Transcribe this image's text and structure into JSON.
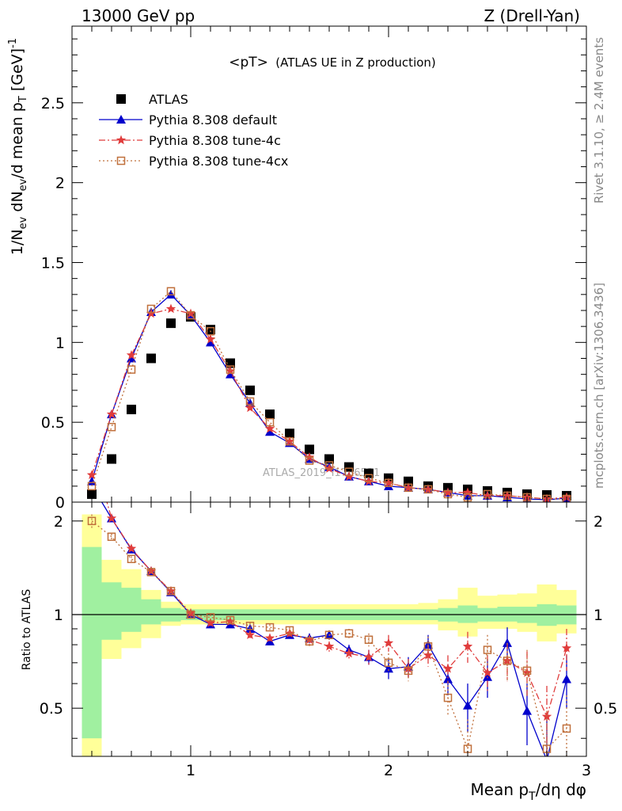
{
  "header": {
    "left": "13000 GeV pp",
    "right": "Z (Drell-Yan)"
  },
  "side_labels": {
    "rivet": "Rivet 3.1.10, ≥ 2.4M events",
    "mcplots": "mcplots.cern.ch [arXiv:1306.3436]"
  },
  "watermark": "ATLAS_2019_I1736531",
  "chart_data": [
    {
      "type": "scatter",
      "title": "<pT>",
      "subtitle": "(ATLAS UE in Z production)",
      "xlabel": "Mean p_T/dη dφ",
      "ylabel": "1/N_ev dN_ev/d mean p_T [GeV]^-1",
      "xlim": [
        0.4,
        3.0
      ],
      "ylim": [
        0,
        2.98
      ],
      "yticks": [
        0,
        0.5,
        1,
        1.5,
        2,
        2.5
      ],
      "ytick_labels": [
        "0",
        "0.5",
        "1",
        "1.5",
        "2",
        "2.5"
      ],
      "legend_position": "top-left",
      "x": [
        0.5,
        0.6,
        0.7,
        0.8,
        0.9,
        1.0,
        1.1,
        1.2,
        1.3,
        1.4,
        1.5,
        1.6,
        1.7,
        1.8,
        1.9,
        2.0,
        2.1,
        2.2,
        2.3,
        2.4,
        2.5,
        2.6,
        2.7,
        2.8,
        2.9
      ],
      "series": [
        {
          "name": "ATLAS",
          "marker": "square",
          "color": "#000000",
          "values": [
            0.05,
            0.27,
            0.58,
            0.9,
            1.12,
            1.16,
            1.08,
            0.87,
            0.7,
            0.55,
            0.43,
            0.33,
            0.27,
            0.22,
            0.18,
            0.15,
            0.13,
            0.1,
            0.09,
            0.08,
            0.07,
            0.06,
            0.05,
            0.045,
            0.04
          ]
        },
        {
          "name": "Pythia 8.308 default",
          "marker": "triangle",
          "color": "#0000cc",
          "line": "solid",
          "values": [
            0.13,
            0.55,
            0.9,
            1.19,
            1.3,
            1.17,
            1.0,
            0.8,
            0.62,
            0.44,
            0.37,
            0.27,
            0.22,
            0.16,
            0.13,
            0.1,
            0.09,
            0.08,
            0.06,
            0.04,
            0.04,
            0.03,
            0.02,
            0.015,
            0.025
          ]
        },
        {
          "name": "Pythia 8.308 tune-4c",
          "marker": "star",
          "color": "#e03c3c",
          "line": "dashdot",
          "values": [
            0.17,
            0.55,
            0.92,
            1.18,
            1.21,
            1.18,
            1.02,
            0.82,
            0.59,
            0.46,
            0.38,
            0.28,
            0.21,
            0.16,
            0.13,
            0.12,
            0.09,
            0.08,
            0.06,
            0.06,
            0.04,
            0.04,
            0.03,
            0.02,
            0.03
          ]
        },
        {
          "name": "Pythia 8.308 tune-4cx",
          "marker": "open-square",
          "color": "#c0703c",
          "line": "dotted",
          "values": [
            0.1,
            0.47,
            0.83,
            1.21,
            1.32,
            1.17,
            1.07,
            0.83,
            0.63,
            0.5,
            0.38,
            0.26,
            0.23,
            0.19,
            0.15,
            0.12,
            0.09,
            0.08,
            0.05,
            0.03,
            0.05,
            0.04,
            0.03,
            0.02,
            0.02
          ]
        }
      ]
    },
    {
      "type": "line",
      "ylabel": "Ratio to ATLAS",
      "xlabel": "Mean p_T/dη dφ",
      "xlim": [
        0.4,
        3.0
      ],
      "ylim": [
        0.35,
        2.3
      ],
      "yticks": [
        0.5,
        1,
        2
      ],
      "ytick_labels": [
        "0.5",
        "1",
        "2"
      ],
      "xticks": [
        1,
        2,
        3
      ],
      "xtick_labels": [
        "1",
        "2",
        "3"
      ],
      "bands": {
        "bin_edges": [
          0.45,
          0.55,
          0.65,
          0.75,
          0.85,
          0.95,
          1.05,
          1.15,
          1.25,
          1.35,
          1.45,
          1.55,
          1.65,
          1.75,
          1.85,
          1.95,
          2.05,
          2.15,
          2.25,
          2.35,
          2.45,
          2.55,
          2.65,
          2.75,
          2.85,
          2.95
        ],
        "stat_color": "#a0f0a0",
        "syst_color": "#ffff99",
        "stat": [
          [
            0.4,
            1.65
          ],
          [
            0.83,
            1.27
          ],
          [
            0.88,
            1.22
          ],
          [
            0.93,
            1.12
          ],
          [
            0.95,
            1.05
          ],
          [
            0.96,
            1.04
          ],
          [
            0.96,
            1.04
          ],
          [
            0.96,
            1.04
          ],
          [
            0.96,
            1.04
          ],
          [
            0.96,
            1.04
          ],
          [
            0.96,
            1.04
          ],
          [
            0.96,
            1.04
          ],
          [
            0.96,
            1.04
          ],
          [
            0.96,
            1.04
          ],
          [
            0.96,
            1.04
          ],
          [
            0.96,
            1.04
          ],
          [
            0.96,
            1.04
          ],
          [
            0.96,
            1.04
          ],
          [
            0.95,
            1.05
          ],
          [
            0.94,
            1.07
          ],
          [
            0.95,
            1.05
          ],
          [
            0.95,
            1.06
          ],
          [
            0.94,
            1.06
          ],
          [
            0.92,
            1.08
          ],
          [
            0.93,
            1.07
          ]
        ],
        "syst": [
          [
            0.3,
            2.1
          ],
          [
            0.72,
            1.5
          ],
          [
            0.78,
            1.4
          ],
          [
            0.84,
            1.2
          ],
          [
            0.92,
            1.1
          ],
          [
            0.93,
            1.08
          ],
          [
            0.93,
            1.08
          ],
          [
            0.93,
            1.08
          ],
          [
            0.93,
            1.08
          ],
          [
            0.93,
            1.08
          ],
          [
            0.93,
            1.08
          ],
          [
            0.93,
            1.08
          ],
          [
            0.93,
            1.08
          ],
          [
            0.93,
            1.08
          ],
          [
            0.93,
            1.08
          ],
          [
            0.93,
            1.08
          ],
          [
            0.93,
            1.08
          ],
          [
            0.93,
            1.09
          ],
          [
            0.89,
            1.12
          ],
          [
            0.85,
            1.22
          ],
          [
            0.9,
            1.15
          ],
          [
            0.9,
            1.16
          ],
          [
            0.88,
            1.17
          ],
          [
            0.82,
            1.25
          ],
          [
            0.87,
            1.2
          ]
        ]
      },
      "series": [
        {
          "name": "Pythia 8.308 default",
          "color": "#0000cc",
          "line": "solid",
          "marker": "triangle",
          "values": [
            2.6,
            2.04,
            1.62,
            1.38,
            1.18,
            1.0,
            0.93,
            0.93,
            0.9,
            0.82,
            0.86,
            0.84,
            0.86,
            0.77,
            0.73,
            0.67,
            0.68,
            0.8,
            0.62,
            0.51,
            0.63,
            0.81,
            0.49,
            0.34,
            0.62
          ],
          "errors": [
            0.1,
            0.04,
            0.03,
            0.02,
            0.02,
            0.02,
            0.02,
            0.02,
            0.02,
            0.02,
            0.02,
            0.03,
            0.03,
            0.03,
            0.04,
            0.05,
            0.05,
            0.06,
            0.07,
            0.09,
            0.09,
            0.1,
            0.11,
            0.12,
            0.12
          ]
        },
        {
          "name": "Pythia 8.308 tune-4c",
          "color": "#e03c3c",
          "line": "dashdot",
          "marker": "star",
          "values": [
            3.4,
            2.04,
            1.63,
            1.38,
            1.19,
            1.01,
            0.94,
            0.95,
            0.86,
            0.84,
            0.87,
            0.83,
            0.79,
            0.75,
            0.73,
            0.81,
            0.67,
            0.74,
            0.67,
            0.79,
            0.65,
            0.71,
            0.65,
            0.47,
            0.78
          ],
          "errors": [
            0.1,
            0.04,
            0.03,
            0.02,
            0.02,
            0.02,
            0.02,
            0.02,
            0.02,
            0.02,
            0.02,
            0.03,
            0.03,
            0.03,
            0.04,
            0.05,
            0.05,
            0.06,
            0.07,
            0.09,
            0.09,
            0.1,
            0.11,
            0.12,
            0.12
          ]
        },
        {
          "name": "Pythia 8.308 tune-4cx",
          "color": "#c0703c",
          "line": "dotted",
          "marker": "open-square",
          "values": [
            2.0,
            1.78,
            1.51,
            1.37,
            1.19,
            1.0,
            0.98,
            0.96,
            0.92,
            0.91,
            0.89,
            0.82,
            0.86,
            0.87,
            0.83,
            0.7,
            0.66,
            0.79,
            0.54,
            0.37,
            0.77,
            0.71,
            0.66,
            0.37,
            0.43
          ],
          "errors": [
            0.1,
            0.04,
            0.03,
            0.02,
            0.02,
            0.02,
            0.02,
            0.02,
            0.02,
            0.02,
            0.02,
            0.03,
            0.03,
            0.03,
            0.04,
            0.05,
            0.05,
            0.06,
            0.07,
            0.09,
            0.09,
            0.1,
            0.11,
            0.12,
            0.12
          ]
        }
      ]
    }
  ]
}
